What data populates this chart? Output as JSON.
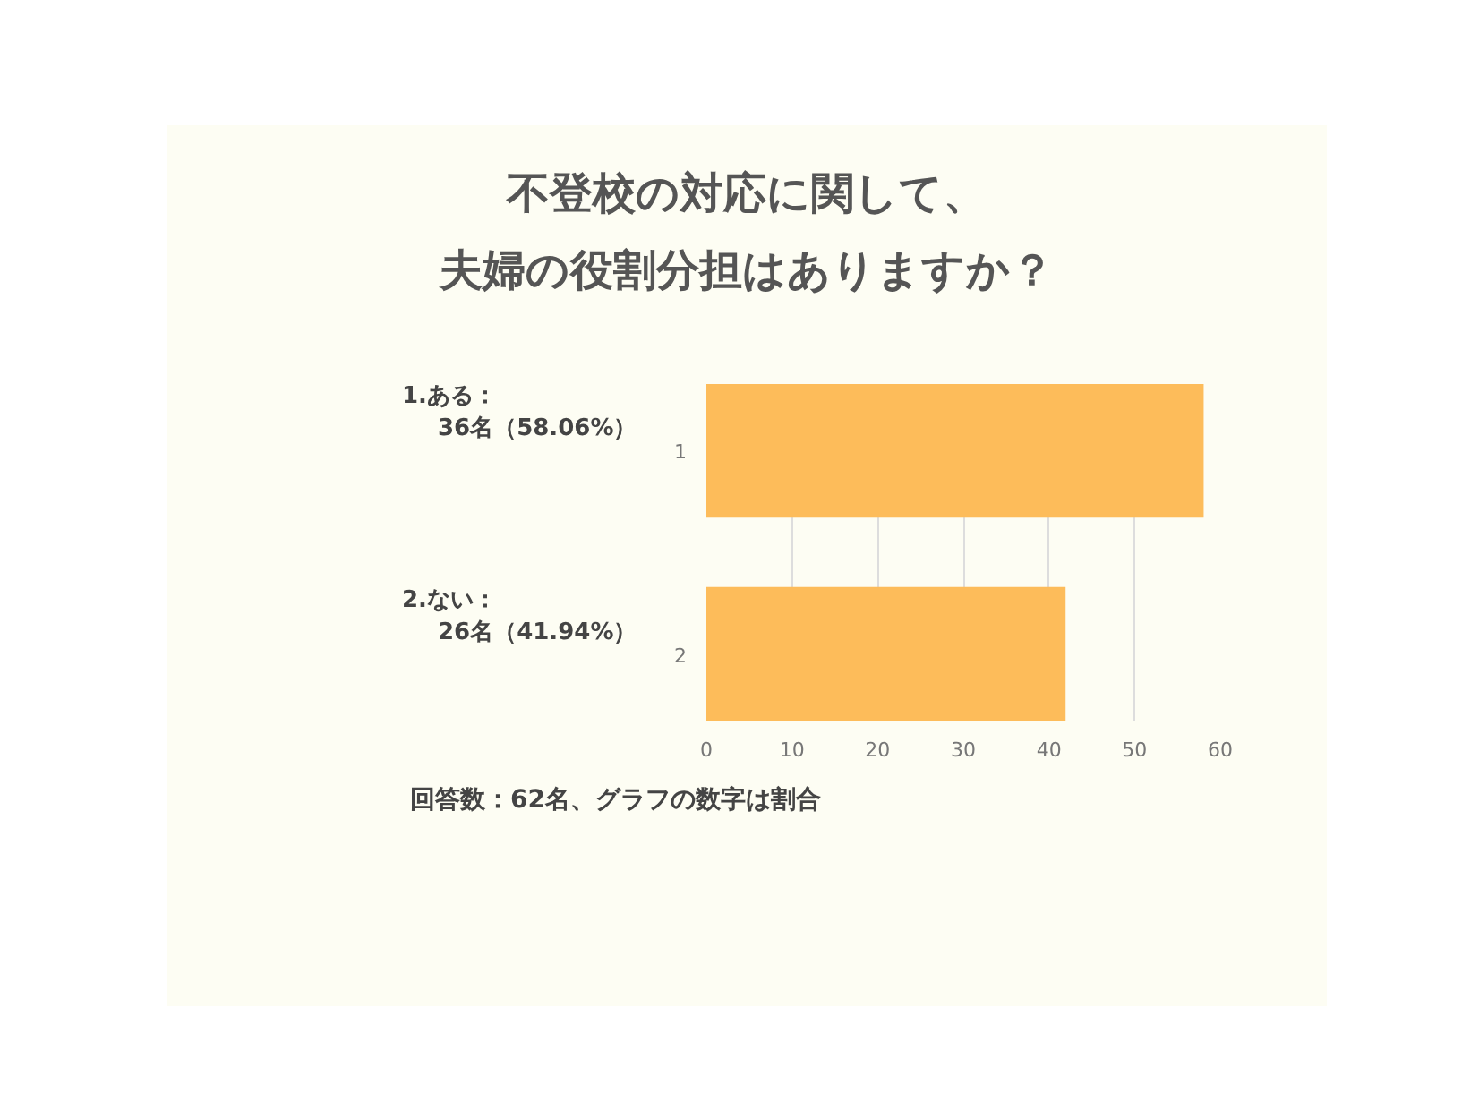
{
  "chart_data": {
    "type": "bar",
    "orientation": "horizontal",
    "title": "不登校の対応に関して、",
    "subtitle": "夫婦の役割分担はありますか？",
    "categories": [
      "1",
      "2"
    ],
    "values": [
      58.06,
      41.94
    ],
    "color": "#fdbc5a",
    "xlim": [
      0,
      60
    ],
    "xticks": [
      0,
      10,
      20,
      30,
      40,
      50,
      60
    ],
    "grid": "x",
    "annotations": [
      "1.ある：",
      "36名（58.06%）",
      "2.ない：",
      "26名（41.94%）",
      "回答数：62名、グラフの数字は割合"
    ]
  }
}
